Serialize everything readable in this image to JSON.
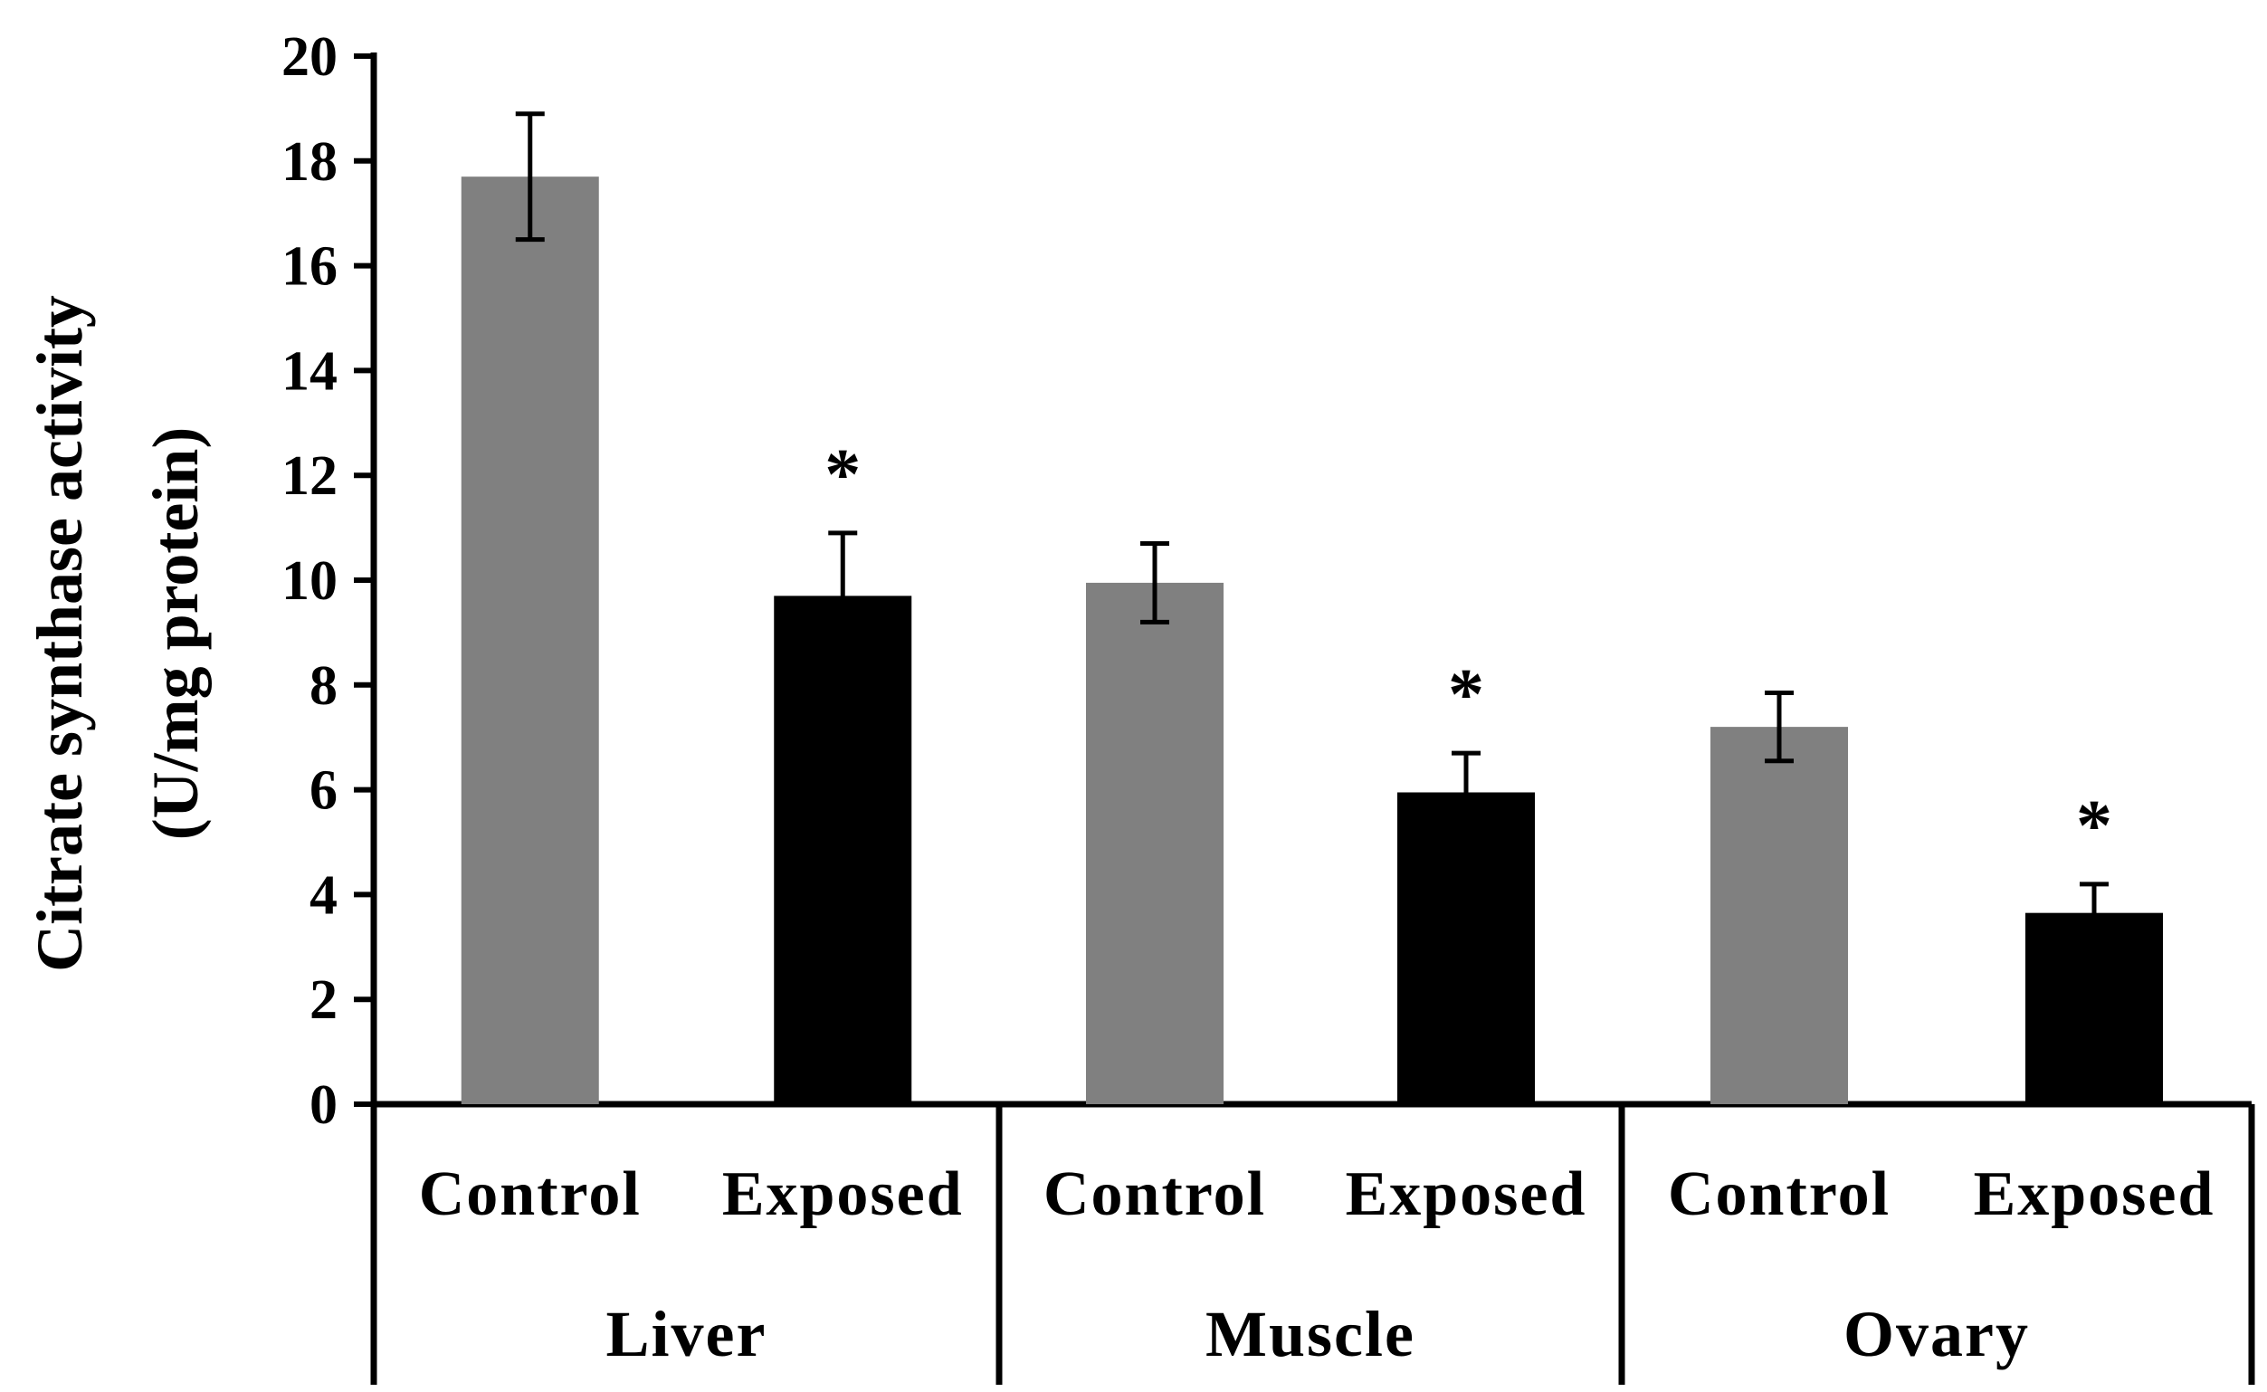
{
  "chart_data": {
    "type": "bar",
    "title": "",
    "xlabel": "",
    "ylabel_lines": [
      "Citrate synthase activity",
      "(U/mg protein)"
    ],
    "ylim": [
      0,
      20
    ],
    "yticks": [
      0,
      2,
      4,
      6,
      8,
      10,
      12,
      14,
      16,
      18,
      20
    ],
    "groups": [
      "Liver",
      "Muscle",
      "Ovary"
    ],
    "conditions": [
      "Control",
      "Exposed"
    ],
    "colors": {
      "Control": "#808080",
      "Exposed": "#000000"
    },
    "bars": [
      {
        "group": "Liver",
        "condition": "Control",
        "value": 17.7,
        "error": 1.2,
        "significant": ""
      },
      {
        "group": "Liver",
        "condition": "Exposed",
        "value": 9.7,
        "error": 1.2,
        "significant": "*"
      },
      {
        "group": "Muscle",
        "condition": "Control",
        "value": 9.95,
        "error": 0.75,
        "significant": ""
      },
      {
        "group": "Muscle",
        "condition": "Exposed",
        "value": 5.95,
        "error": 0.75,
        "significant": "*"
      },
      {
        "group": "Ovary",
        "condition": "Control",
        "value": 7.2,
        "error": 0.65,
        "significant": ""
      },
      {
        "group": "Ovary",
        "condition": "Exposed",
        "value": 3.65,
        "error": 0.55,
        "significant": "*"
      }
    ]
  }
}
